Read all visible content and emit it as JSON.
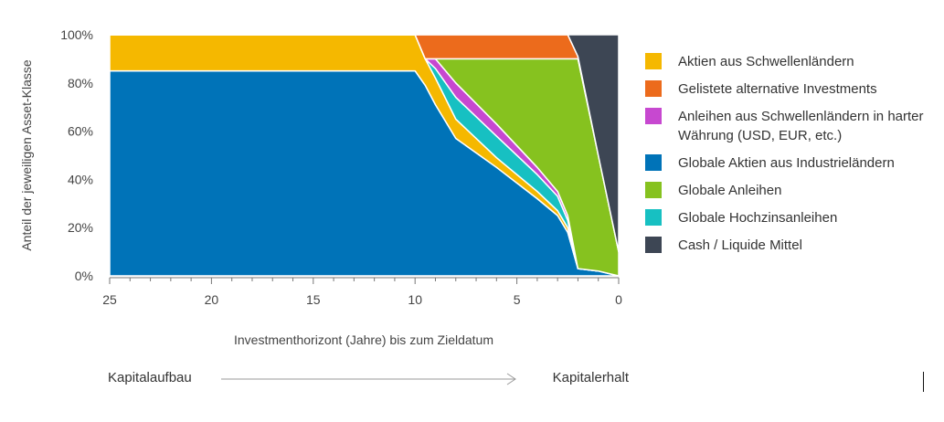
{
  "chart_data": {
    "type": "area",
    "stacked": true,
    "xlabel": "Investmenthorizont (Jahre) bis zum Zieldatum",
    "ylabel": "Anteil der jeweiligen Asset-Klasse",
    "xlim": [
      25,
      0
    ],
    "ylim": [
      0,
      100
    ],
    "x_ticks": [
      "25",
      "20",
      "15",
      "10",
      "5",
      "0"
    ],
    "y_ticks": [
      "0%",
      "20%",
      "40%",
      "60%",
      "80%",
      "100%"
    ],
    "grid": false,
    "legend_position": "right",
    "x": [
      25,
      10,
      9.5,
      9,
      8,
      6,
      4,
      3,
      2.5,
      2,
      1,
      0
    ],
    "series": [
      {
        "name": "Globale Aktien aus Industrieländern",
        "color": "#0073b8",
        "values": [
          85,
          85,
          79,
          71,
          57,
          45,
          32,
          25,
          18,
          3,
          2,
          0
        ]
      },
      {
        "name": "Aktien aus Schwellenländern",
        "color": "#f5b800",
        "values": [
          15,
          15,
          11,
          11,
          8,
          4,
          3,
          2,
          2,
          0,
          0,
          0
        ]
      },
      {
        "name": "Globale Hochzinsanleihen",
        "color": "#17c0c2",
        "values": [
          0,
          0,
          0,
          4,
          9,
          9,
          7,
          6,
          3,
          0,
          0,
          0
        ]
      },
      {
        "name": "Anleihen aus Schwellenländern in harter Währung (USD, EUR, etc.)",
        "color": "#c748d0",
        "values": [
          0,
          0,
          0,
          4,
          6,
          5,
          3,
          2,
          2,
          0,
          0,
          0
        ]
      },
      {
        "name": "Globale Anleihen",
        "color": "#86c21f",
        "values": [
          0,
          0,
          0,
          0,
          10,
          27,
          45,
          55,
          65,
          87,
          48,
          10
        ]
      },
      {
        "name": "Gelistete alternative Investments",
        "color": "#ec6b1c",
        "values": [
          0,
          0,
          10,
          10,
          10,
          10,
          10,
          10,
          10,
          1,
          0,
          0
        ]
      },
      {
        "name": "Cash / Liquide Mittel",
        "color": "#3d4654",
        "values": [
          0,
          0,
          0,
          0,
          0,
          0,
          0,
          0,
          0,
          9,
          50,
          90
        ]
      }
    ]
  },
  "legend": {
    "items": [
      {
        "label": "Aktien aus Schwellenländern",
        "color": "#f5b800"
      },
      {
        "label": "Gelistete alternative Investments",
        "color": "#ec6b1c"
      },
      {
        "label": "Anleihen aus Schwellenländern in harter Währung (USD, EUR, etc.)",
        "color": "#c748d0"
      },
      {
        "label": "Globale Aktien aus Industrieländern",
        "color": "#0073b8"
      },
      {
        "label": "Globale Anleihen",
        "color": "#86c21f"
      },
      {
        "label": "Globale Hochzinsanleihen",
        "color": "#17c0c2"
      },
      {
        "label": "Cash / Liquide Mittel",
        "color": "#3d4654"
      }
    ]
  },
  "flow": {
    "start": "Kapitalaufbau",
    "end": "Kapitalerhalt"
  }
}
